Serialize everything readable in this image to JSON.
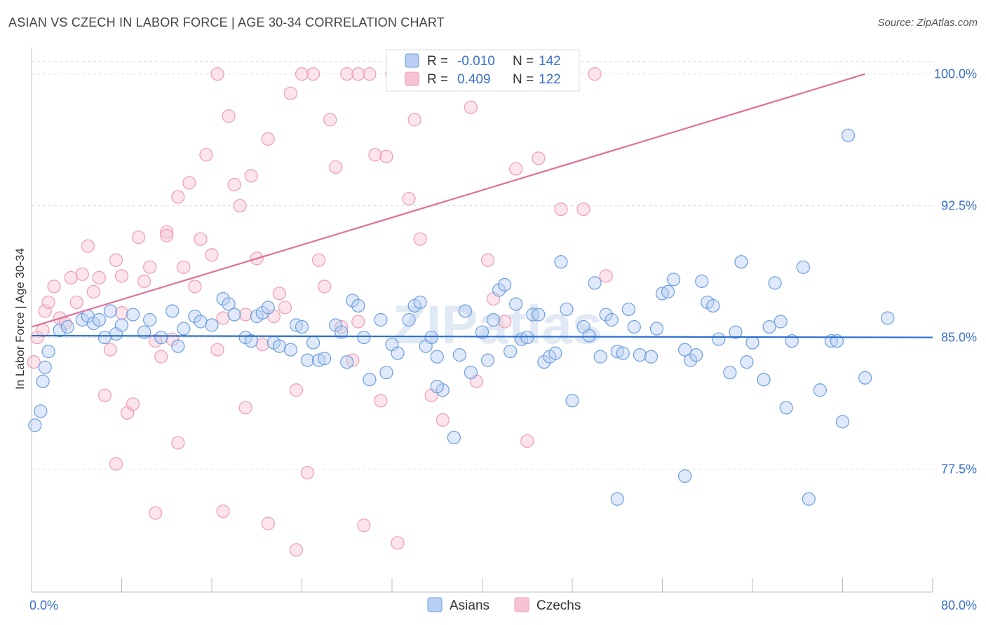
{
  "title": "ASIAN VS CZECH IN LABOR FORCE | AGE 30-34 CORRELATION CHART",
  "source": "Source: ZipAtlas.com",
  "watermark": "ZIPatlas",
  "chart_data": {
    "type": "scatter",
    "ylabel": "In Labor Force | Age 30-34",
    "xlim": [
      0,
      80
    ],
    "ylim": [
      70.5,
      101.5
    ],
    "x_tick_labels": [
      "0.0%",
      "80.0%"
    ],
    "y_ticks": [
      77.5,
      85.0,
      92.5,
      100.0
    ],
    "y_tick_labels": [
      "77.5%",
      "85.0%",
      "92.5%",
      "100.0%"
    ],
    "grid": true,
    "legend_placement": "top-center",
    "colors": {
      "asians": "#6b9ee0",
      "czechs": "#f19bb5",
      "asians_line": "#2a6fd1",
      "czechs_line": "#e0709a"
    },
    "stats": [
      {
        "r_label": "R =",
        "r": "-0.010",
        "n_label": "N =",
        "n": "142"
      },
      {
        "r_label": "R =",
        "r": "0.409",
        "n_label": "N =",
        "n": "122"
      }
    ],
    "series": [
      {
        "name": "Asians",
        "trend": {
          "x": [
            0,
            80
          ],
          "y": [
            85.1,
            85.0
          ]
        },
        "points": [
          [
            0.3,
            80.0
          ],
          [
            0.8,
            80.8
          ],
          [
            1.0,
            82.5
          ],
          [
            1.2,
            83.3
          ],
          [
            1.5,
            84.2
          ],
          [
            2.5,
            85.4
          ],
          [
            3.2,
            85.6
          ],
          [
            4.5,
            86.0
          ],
          [
            5.0,
            86.2
          ],
          [
            5.5,
            85.8
          ],
          [
            6.0,
            86.0
          ],
          [
            6.5,
            85.0
          ],
          [
            7.0,
            86.5
          ],
          [
            7.5,
            85.2
          ],
          [
            8.0,
            85.7
          ],
          [
            9.0,
            86.3
          ],
          [
            10.0,
            85.3
          ],
          [
            10.5,
            86.0
          ],
          [
            11.5,
            85.0
          ],
          [
            12.5,
            86.5
          ],
          [
            13.0,
            84.5
          ],
          [
            13.5,
            85.5
          ],
          [
            14.5,
            86.2
          ],
          [
            15.0,
            85.9
          ],
          [
            16.0,
            85.7
          ],
          [
            17.0,
            87.2
          ],
          [
            17.5,
            86.9
          ],
          [
            18.0,
            86.3
          ],
          [
            19.0,
            85.0
          ],
          [
            19.5,
            84.8
          ],
          [
            20.0,
            86.2
          ],
          [
            20.5,
            86.4
          ],
          [
            21.0,
            86.7
          ],
          [
            21.5,
            84.7
          ],
          [
            22.0,
            84.5
          ],
          [
            23.0,
            84.3
          ],
          [
            23.5,
            85.7
          ],
          [
            24.0,
            85.6
          ],
          [
            24.5,
            83.7
          ],
          [
            25.0,
            84.7
          ],
          [
            25.5,
            83.7
          ],
          [
            26.0,
            83.8
          ],
          [
            27.0,
            85.7
          ],
          [
            27.5,
            85.3
          ],
          [
            28.0,
            83.6
          ],
          [
            28.5,
            87.1
          ],
          [
            29.0,
            86.8
          ],
          [
            29.5,
            85.0
          ],
          [
            30.0,
            82.6
          ],
          [
            31.0,
            86.0
          ],
          [
            31.5,
            83.0
          ],
          [
            32.0,
            84.6
          ],
          [
            32.5,
            84.1
          ],
          [
            33.5,
            86.0
          ],
          [
            34.0,
            86.8
          ],
          [
            34.5,
            87.0
          ],
          [
            35.0,
            84.5
          ],
          [
            35.5,
            85.0
          ],
          [
            36.0,
            83.9
          ],
          [
            36.5,
            82.0
          ],
          [
            37.5,
            79.3
          ],
          [
            38.0,
            84.0
          ],
          [
            38.5,
            86.5
          ],
          [
            39.0,
            83.0
          ],
          [
            40.0,
            85.3
          ],
          [
            40.5,
            83.7
          ],
          [
            41.0,
            86.0
          ],
          [
            41.5,
            87.7
          ],
          [
            42.0,
            88.0
          ],
          [
            42.5,
            84.2
          ],
          [
            43.0,
            86.9
          ],
          [
            43.5,
            84.9
          ],
          [
            44.0,
            85.0
          ],
          [
            44.5,
            86.3
          ],
          [
            45.0,
            86.3
          ],
          [
            45.5,
            83.6
          ],
          [
            46.0,
            83.9
          ],
          [
            46.5,
            84.1
          ],
          [
            47.0,
            89.3
          ],
          [
            47.5,
            86.6
          ],
          [
            48.0,
            81.4
          ],
          [
            49.0,
            85.6
          ],
          [
            49.5,
            85.1
          ],
          [
            50.0,
            88.1
          ],
          [
            50.5,
            83.9
          ],
          [
            51.0,
            86.3
          ],
          [
            51.5,
            86.0
          ],
          [
            52.0,
            84.2
          ],
          [
            52.5,
            84.1
          ],
          [
            53.0,
            86.6
          ],
          [
            53.5,
            85.6
          ],
          [
            54.0,
            84.0
          ],
          [
            55.0,
            83.9
          ],
          [
            55.5,
            85.5
          ],
          [
            56.0,
            87.5
          ],
          [
            56.5,
            87.6
          ],
          [
            57.0,
            88.3
          ],
          [
            58.0,
            84.3
          ],
          [
            58.5,
            83.7
          ],
          [
            59.0,
            84.0
          ],
          [
            59.5,
            88.2
          ],
          [
            60.0,
            87.0
          ],
          [
            60.5,
            86.8
          ],
          [
            61.0,
            84.9
          ],
          [
            62.0,
            83.0
          ],
          [
            62.5,
            85.3
          ],
          [
            63.0,
            89.3
          ],
          [
            63.5,
            83.6
          ],
          [
            64.0,
            84.7
          ],
          [
            65.0,
            82.6
          ],
          [
            65.5,
            85.6
          ],
          [
            66.0,
            88.1
          ],
          [
            66.5,
            85.9
          ],
          [
            67.0,
            81.0
          ],
          [
            67.5,
            84.8
          ],
          [
            68.5,
            89.0
          ],
          [
            69.0,
            75.8
          ],
          [
            70.0,
            82.0
          ],
          [
            71.0,
            84.8
          ],
          [
            71.5,
            84.8
          ],
          [
            72.0,
            80.2
          ],
          [
            74.0,
            82.7
          ],
          [
            76.0,
            86.1
          ],
          [
            58.0,
            77.1
          ],
          [
            52.0,
            75.8
          ],
          [
            72.5,
            96.5
          ],
          [
            36.0,
            82.2
          ]
        ]
      },
      {
        "name": "Czechs",
        "trend": {
          "x": [
            0,
            74
          ],
          "y": [
            85.6,
            100.0
          ]
        },
        "points": [
          [
            0.2,
            83.6
          ],
          [
            0.5,
            85.0
          ],
          [
            1.0,
            85.4
          ],
          [
            1.2,
            86.5
          ],
          [
            1.5,
            87.0
          ],
          [
            2.0,
            87.9
          ],
          [
            2.5,
            86.1
          ],
          [
            3.0,
            85.8
          ],
          [
            3.5,
            88.4
          ],
          [
            4.0,
            87.0
          ],
          [
            4.5,
            88.6
          ],
          [
            5.0,
            90.2
          ],
          [
            5.5,
            87.6
          ],
          [
            6.0,
            88.4
          ],
          [
            6.5,
            81.7
          ],
          [
            7.0,
            84.3
          ],
          [
            7.5,
            89.4
          ],
          [
            8.0,
            88.5
          ],
          [
            8.5,
            80.7
          ],
          [
            9.0,
            81.2
          ],
          [
            9.5,
            90.7
          ],
          [
            10.0,
            88.2
          ],
          [
            10.5,
            89.0
          ],
          [
            11.0,
            84.8
          ],
          [
            11.5,
            83.9
          ],
          [
            12.0,
            91.0
          ],
          [
            12.5,
            84.9
          ],
          [
            13.0,
            93.0
          ],
          [
            13.5,
            89.0
          ],
          [
            14.0,
            93.8
          ],
          [
            14.5,
            87.9
          ],
          [
            15.0,
            90.6
          ],
          [
            15.5,
            95.4
          ],
          [
            16.0,
            89.7
          ],
          [
            16.5,
            84.3
          ],
          [
            17.0,
            86.1
          ],
          [
            17.5,
            97.6
          ],
          [
            18.0,
            93.7
          ],
          [
            18.5,
            92.5
          ],
          [
            19.0,
            86.3
          ],
          [
            19.5,
            94.2
          ],
          [
            20.0,
            89.5
          ],
          [
            20.5,
            84.6
          ],
          [
            21.0,
            96.3
          ],
          [
            21.5,
            86.2
          ],
          [
            22.0,
            87.5
          ],
          [
            22.5,
            86.7
          ],
          [
            23.0,
            98.9
          ],
          [
            23.5,
            82.0
          ],
          [
            24.0,
            100.0
          ],
          [
            24.5,
            77.3
          ],
          [
            25.0,
            100.0
          ],
          [
            25.5,
            89.4
          ],
          [
            26.0,
            87.9
          ],
          [
            26.5,
            97.4
          ],
          [
            27.0,
            94.7
          ],
          [
            27.5,
            85.6
          ],
          [
            28.0,
            100.0
          ],
          [
            28.5,
            83.7
          ],
          [
            29.0,
            100.0
          ],
          [
            29.5,
            74.3
          ],
          [
            30.0,
            100.0
          ],
          [
            30.5,
            95.4
          ],
          [
            31.0,
            81.4
          ],
          [
            31.5,
            95.3
          ],
          [
            32.0,
            100.0
          ],
          [
            32.5,
            73.3
          ],
          [
            33.0,
            100.0
          ],
          [
            33.5,
            92.9
          ],
          [
            34.0,
            97.4
          ],
          [
            34.5,
            90.6
          ],
          [
            35.0,
            100.0
          ],
          [
            35.5,
            81.7
          ],
          [
            36.0,
            100.0
          ],
          [
            36.5,
            80.3
          ],
          [
            37.0,
            100.0
          ],
          [
            37.5,
            100.0
          ],
          [
            38.0,
            100.0
          ],
          [
            38.5,
            100.0
          ],
          [
            39.0,
            98.1
          ],
          [
            39.5,
            82.5
          ],
          [
            40.0,
            100.0
          ],
          [
            40.5,
            89.4
          ],
          [
            41.0,
            87.2
          ],
          [
            42.0,
            85.9
          ],
          [
            43.0,
            94.6
          ],
          [
            44.0,
            79.1
          ],
          [
            45.0,
            95.2
          ],
          [
            46.0,
            100.0
          ],
          [
            47.0,
            92.3
          ],
          [
            48.0,
            100.0
          ],
          [
            49.0,
            92.3
          ],
          [
            50.0,
            100.0
          ],
          [
            51.0,
            88.5
          ],
          [
            19.0,
            81.0
          ],
          [
            17.0,
            75.1
          ],
          [
            13.0,
            79.0
          ],
          [
            11.0,
            75.0
          ],
          [
            7.5,
            77.8
          ],
          [
            21.0,
            74.4
          ],
          [
            23.5,
            72.9
          ],
          [
            29.0,
            85.9
          ],
          [
            16.5,
            100.0
          ],
          [
            8.0,
            86.4
          ],
          [
            12.0,
            90.8
          ]
        ]
      }
    ]
  }
}
